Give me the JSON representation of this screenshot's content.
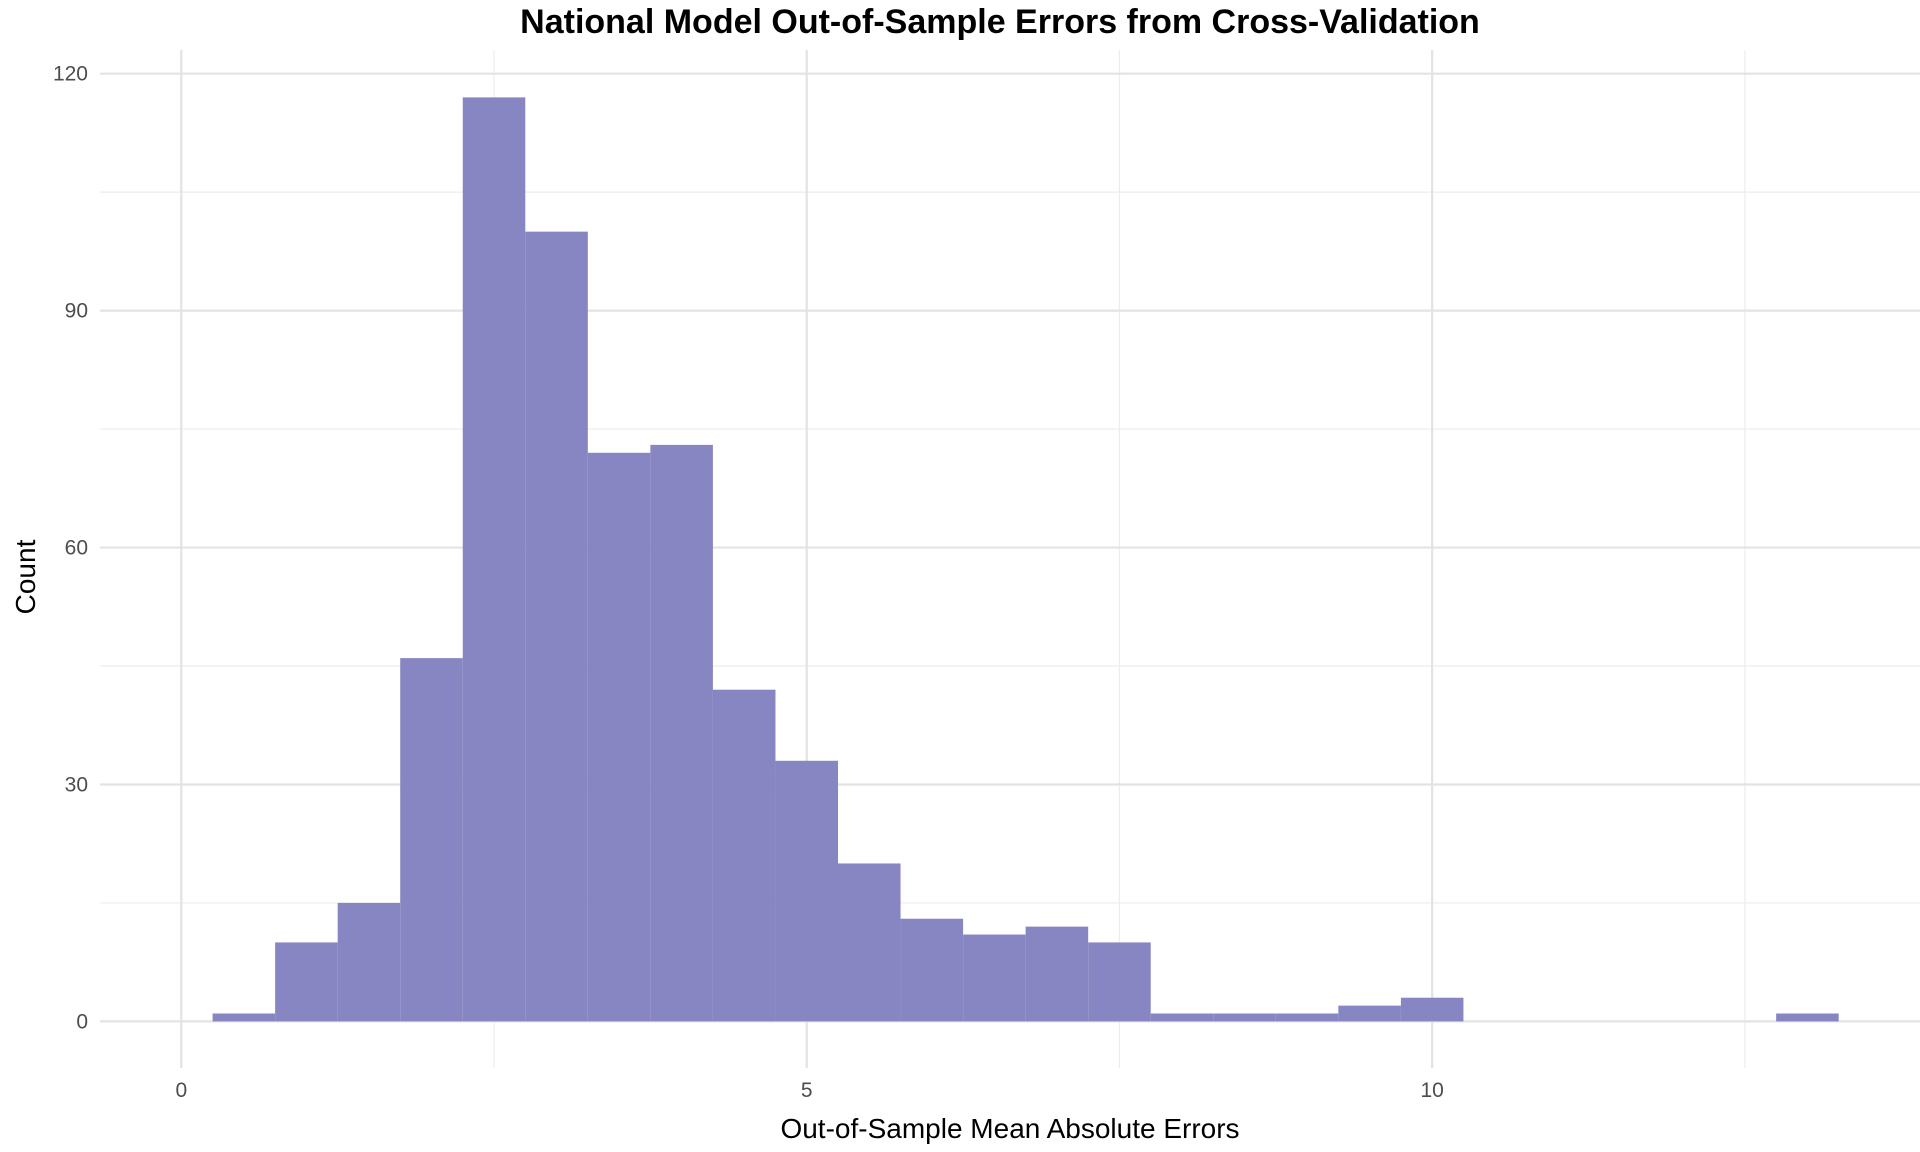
{
  "chart_data": {
    "type": "bar",
    "subtype": "histogram",
    "title": "National Model Out-of-Sample Errors from Cross-Validation",
    "xlabel": "Out-of-Sample Mean Absolute Errors",
    "ylabel": "Count",
    "xlim": [
      -0.65,
      13.9
    ],
    "ylim": [
      -5.9,
      123
    ],
    "x_ticks": [
      0,
      5,
      10
    ],
    "y_ticks": [
      0,
      30,
      60,
      90,
      120
    ],
    "x_minor_ticks": [
      2.5,
      7.5,
      12.5
    ],
    "y_minor_ticks": [
      15,
      45,
      75,
      105
    ],
    "grid": true,
    "bar_color": "#8786c2",
    "bins": [
      {
        "x0": 0.25,
        "x1": 0.75,
        "count": 1
      },
      {
        "x0": 0.75,
        "x1": 1.25,
        "count": 10
      },
      {
        "x0": 1.25,
        "x1": 1.75,
        "count": 15
      },
      {
        "x0": 1.75,
        "x1": 2.25,
        "count": 46
      },
      {
        "x0": 2.25,
        "x1": 2.75,
        "count": 117
      },
      {
        "x0": 2.75,
        "x1": 3.25,
        "count": 100
      },
      {
        "x0": 3.25,
        "x1": 3.75,
        "count": 72
      },
      {
        "x0": 3.75,
        "x1": 4.25,
        "count": 73
      },
      {
        "x0": 4.25,
        "x1": 4.75,
        "count": 42
      },
      {
        "x0": 4.75,
        "x1": 5.25,
        "count": 33
      },
      {
        "x0": 5.25,
        "x1": 5.75,
        "count": 20
      },
      {
        "x0": 5.75,
        "x1": 6.25,
        "count": 13
      },
      {
        "x0": 6.25,
        "x1": 6.75,
        "count": 11
      },
      {
        "x0": 6.75,
        "x1": 7.25,
        "count": 12
      },
      {
        "x0": 7.25,
        "x1": 7.75,
        "count": 10
      },
      {
        "x0": 7.75,
        "x1": 8.25,
        "count": 1
      },
      {
        "x0": 8.25,
        "x1": 8.75,
        "count": 1
      },
      {
        "x0": 8.75,
        "x1": 9.25,
        "count": 1
      },
      {
        "x0": 9.25,
        "x1": 9.75,
        "count": 2
      },
      {
        "x0": 9.75,
        "x1": 10.25,
        "count": 3
      },
      {
        "x0": 10.25,
        "x1": 10.75,
        "count": 0
      },
      {
        "x0": 10.75,
        "x1": 11.25,
        "count": 0
      },
      {
        "x0": 11.25,
        "x1": 11.75,
        "count": 0
      },
      {
        "x0": 11.75,
        "x1": 12.25,
        "count": 0
      },
      {
        "x0": 12.25,
        "x1": 12.75,
        "count": 0
      },
      {
        "x0": 12.75,
        "x1": 13.25,
        "count": 1
      }
    ]
  }
}
